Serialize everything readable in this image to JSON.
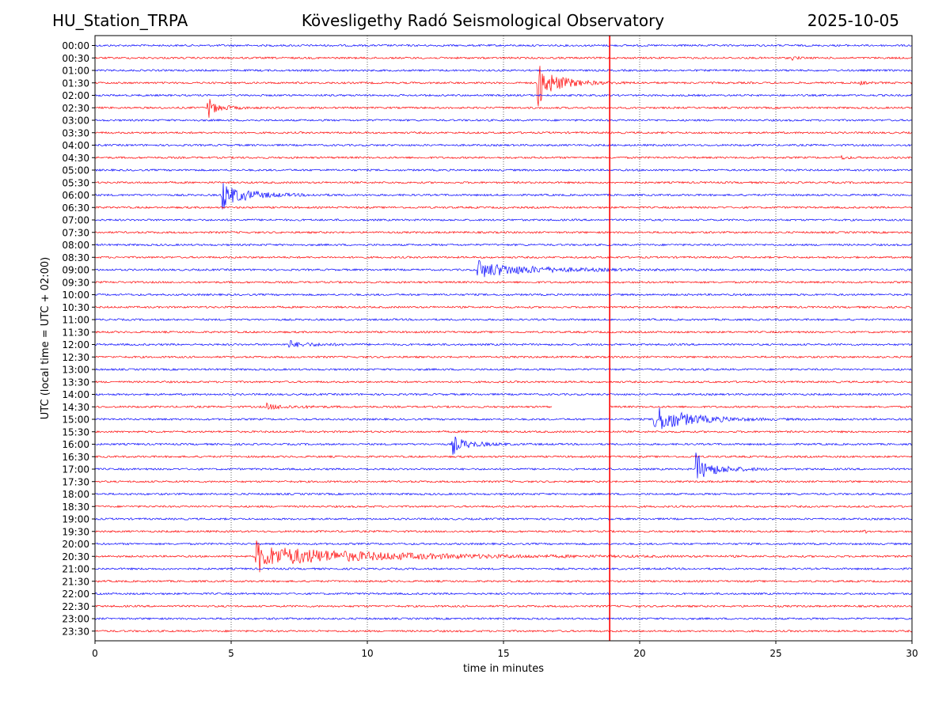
{
  "header": {
    "station": "HU_Station_TRPA",
    "title": "Kövesligethy Radó Seismological Observatory",
    "date": "2025-10-05"
  },
  "colors": {
    "trace_a": "#0000ff",
    "trace_b": "#ff0000",
    "axis": "#000000",
    "grid": "#000000"
  },
  "chart_data": {
    "type": "line",
    "title": "Kövesligethy Radó Seismological Observatory",
    "xlabel": "time in minutes",
    "ylabel": "UTC (local time = UTC + 02:00)",
    "xlim": [
      0,
      30
    ],
    "xticks": [
      0,
      5,
      10,
      15,
      20,
      25,
      30
    ],
    "grid": "vertical dotted at 5-minute ticks",
    "rows": [
      "00:00",
      "00:30",
      "01:00",
      "01:30",
      "02:00",
      "02:30",
      "03:00",
      "03:30",
      "04:00",
      "04:30",
      "05:00",
      "05:30",
      "06:00",
      "06:30",
      "07:00",
      "07:30",
      "08:00",
      "08:30",
      "09:00",
      "09:30",
      "10:00",
      "10:30",
      "11:00",
      "11:30",
      "12:00",
      "12:30",
      "13:00",
      "13:30",
      "14:00",
      "14:30",
      "15:00",
      "15:30",
      "16:00",
      "16:30",
      "17:00",
      "17:30",
      "18:00",
      "18:30",
      "19:00",
      "19:30",
      "20:00",
      "20:30",
      "21:00",
      "21:30",
      "22:00",
      "22:30",
      "23:00",
      "23:30"
    ],
    "row_colors": "alternating blue (on the hour) / red (half past)",
    "events": [
      {
        "row": "01:30",
        "start_min": 16.25,
        "decay_min": 0.8,
        "amplitude": 2.3
      },
      {
        "row": "02:30",
        "start_min": 4.1,
        "decay_min": 0.5,
        "amplitude": 1.0
      },
      {
        "row": "06:00",
        "start_min": 4.65,
        "decay_min": 1.0,
        "amplitude": 1.5
      },
      {
        "row": "09:00",
        "start_min": 14.0,
        "decay_min": 2.0,
        "amplitude": 1.1
      },
      {
        "row": "12:00",
        "start_min": 7.1,
        "decay_min": 1.0,
        "amplitude": 0.35
      },
      {
        "row": "14:30",
        "start_min": 6.3,
        "decay_min": 1.0,
        "amplitude": 0.3
      },
      {
        "row": "15:00",
        "start_min": 20.5,
        "decay_min": 1.2,
        "amplitude": 2.0
      },
      {
        "row": "16:00",
        "start_min": 13.1,
        "decay_min": 0.7,
        "amplitude": 1.0
      },
      {
        "row": "17:00",
        "start_min": 22.05,
        "decay_min": 0.8,
        "amplitude": 1.5
      },
      {
        "row": "20:30",
        "start_min": 5.9,
        "decay_min": 4.0,
        "amplitude": 1.5
      },
      {
        "row": "00:30",
        "start_min": 25.6,
        "decay_min": 0.2,
        "amplitude": 0.2
      },
      {
        "row": "01:30",
        "start_min": 28.1,
        "decay_min": 0.3,
        "amplitude": 0.15
      },
      {
        "row": "04:30",
        "start_min": 27.4,
        "decay_min": 0.3,
        "amplitude": 0.15
      },
      {
        "row": "19:30",
        "start_min": 28.2,
        "decay_min": 0.2,
        "amplitude": 0.15
      }
    ],
    "spike": {
      "x_min": 18.9,
      "from_row": "00:00",
      "to_row": "23:30"
    },
    "gap": {
      "row": "14:30",
      "from_min": 16.8,
      "to_min": 18.9
    }
  }
}
